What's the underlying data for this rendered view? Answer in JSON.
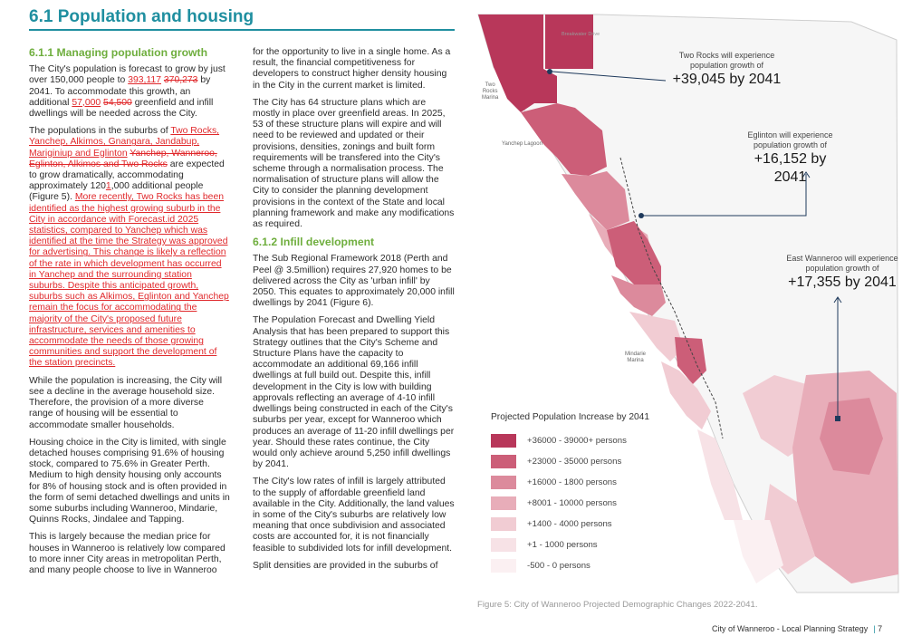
{
  "page": {
    "title": "6.1 Population and housing",
    "footer_text": "City of Wanneroo - Local Planning Strategy",
    "footer_sep": "|",
    "page_number": "7",
    "accent_color": "#1f8fa0",
    "heading_color": "#6fae3e",
    "edit_color": "#e0282b"
  },
  "col1": {
    "heading": "6.1.1 Managing population growth",
    "p1": {
      "a": "The City's population is forecast to grow by just over 150,000 people to ",
      "ins1": "393,117",
      "del1": "370,273",
      "b": " by 2041. To accommodate this growth, an additional ",
      "ins2": "57,000",
      "del2": "54,500",
      "c": " greenfield and infill dwellings will be needed across the City."
    },
    "p2": {
      "a": "The populations in the suburbs of ",
      "ins1": "Two Rocks, Yanchep, Alkimos, Gnangara, Jandabup, Mariginiup and Eglinton",
      "del1": "Yanchep, Wanneroo, Eglinton, Alkimos and Two Rocks",
      "b": " are expected to grow dramatically, accommodating approximately 120",
      "ins2": "1",
      "c": ",000 additional people (Figure 5). ",
      "ins3": "More recently, Two Rocks has been identified as the highest growing suburb in the City in accordance with Forecast.id 2025 statistics, compared to Yanchep which was identified at the time the Strategy was approved for advertising. This change is likely a reflection of the rate in which development has occurred in Yanchep and the surrounding station suburbs. Despite this anticipated growth, suburbs such as Alkimos, Eglinton and Yanchep remain the focus for accommodating the majority of the City's proposed future infrastructure, services and amenities to accommodate the needs of those growing communities and support the development of the station precincts. "
    },
    "p3": "While the population is increasing, the City will see a decline in the average household size. Therefore, the provision of a more diverse range of housing will be essential to accommodate smaller households.",
    "p4": "Housing choice in the City is limited, with single detached houses comprising 91.6% of housing stock, compared to 75.6% in Greater Perth. Medium to high density housing only accounts for 8% of housing stock and is often provided in the form of semi detached dwellings and units in some suburbs including Wanneroo, Mindarie, Quinns Rocks, Jindalee and Tapping.",
    "p5": "This is largely because the median price for houses in Wanneroo is relatively low compared to more inner City areas in metropolitan Perth, and many people choose to live in Wanneroo"
  },
  "col2": {
    "p1": "for the opportunity to live in a single home. As a result, the financial competitiveness for developers to construct higher density housing in the City in the current market is limited.",
    "p2": "The City has 64 structure plans which are mostly in place over greenfield areas. In 2025, 53 of these structure plans will expire and will need to be reviewed and updated or their provisions, densities, zonings and built form requirements will be transfered into the City's scheme through a normalisation process. The normalisation of structure plans will allow the City to consider the planning development provisions in the context of the State and local planning framework and make any modifications as required.",
    "heading2": "6.1.2 Infill development",
    "p3": "The Sub Regional Framework 2018 (Perth and Peel @ 3.5million) requires 27,920 homes to be delivered across the City as 'urban infill' by 2050. This equates to approximately 20,000 infill dwellings by 2041 (Figure 6).",
    "p4": "The Population Forecast and Dwelling Yield Analysis that has been prepared to support this Strategy outlines that the City's Scheme and Structure Plans have the capacity to accommodate an additional 69,166 infill dwellings at full build out. Despite this, infill development in the City is low with building approvals reflecting an average of 4-10 infill dwellings being constructed in each of the City's suburbs per year, except for Wanneroo which produces an average of 11-20 infill dwellings per year. Should these rates continue, the City would only achieve around 5,250 infill dwellings by 2041.",
    "p5": "The City's low rates of infill is largely attributed to the supply of affordable greenfield land available in the City. Additionally, the land values in some of the City's suburbs are relatively low meaning that once subdivision and associated costs are accounted for, it is not financially feasible to subdivided lots for infill development.",
    "p6": "Split densities are provided in the suburbs of"
  },
  "map": {
    "place_labels": {
      "two_rocks_marina": "Two\nRocks\nMarina",
      "yanchep_lagoon": "Yanchep Lagoon",
      "mindarie_marina": "Mindarie\nMarina",
      "road": "Breakwater Drive"
    },
    "callouts": [
      {
        "text": "Two Rocks will experience population growth of",
        "value": "+39,045 by 2041"
      },
      {
        "text": "Eglinton will experience population growth of",
        "value": "+16,152 by 2041"
      },
      {
        "text": "East Wanneroo will experience population growth of",
        "value": "+17,355 by 2041"
      }
    ],
    "legend_title": "Projected Population Increase by 2041",
    "legend": [
      {
        "label": "+36000 - 39000+ persons",
        "color": "#b8375a"
      },
      {
        "label": "+23000 - 35000 persons",
        "color": "#cc5e78"
      },
      {
        "label": "+16000 - 1800 persons",
        "color": "#dc8a9c"
      },
      {
        "label": "+8001 - 10000 persons",
        "color": "#e8adb9"
      },
      {
        "label": "+1400 - 4000 persons",
        "color": "#f1ccd3"
      },
      {
        "label": "+1 - 1000 persons",
        "color": "#f7e2e6"
      },
      {
        "label": "-500 - 0 persons",
        "color": "#fbf0f2"
      }
    ],
    "caption": "Figure 5: City of Wanneroo Projected Demographic Changes 2022-2041."
  }
}
